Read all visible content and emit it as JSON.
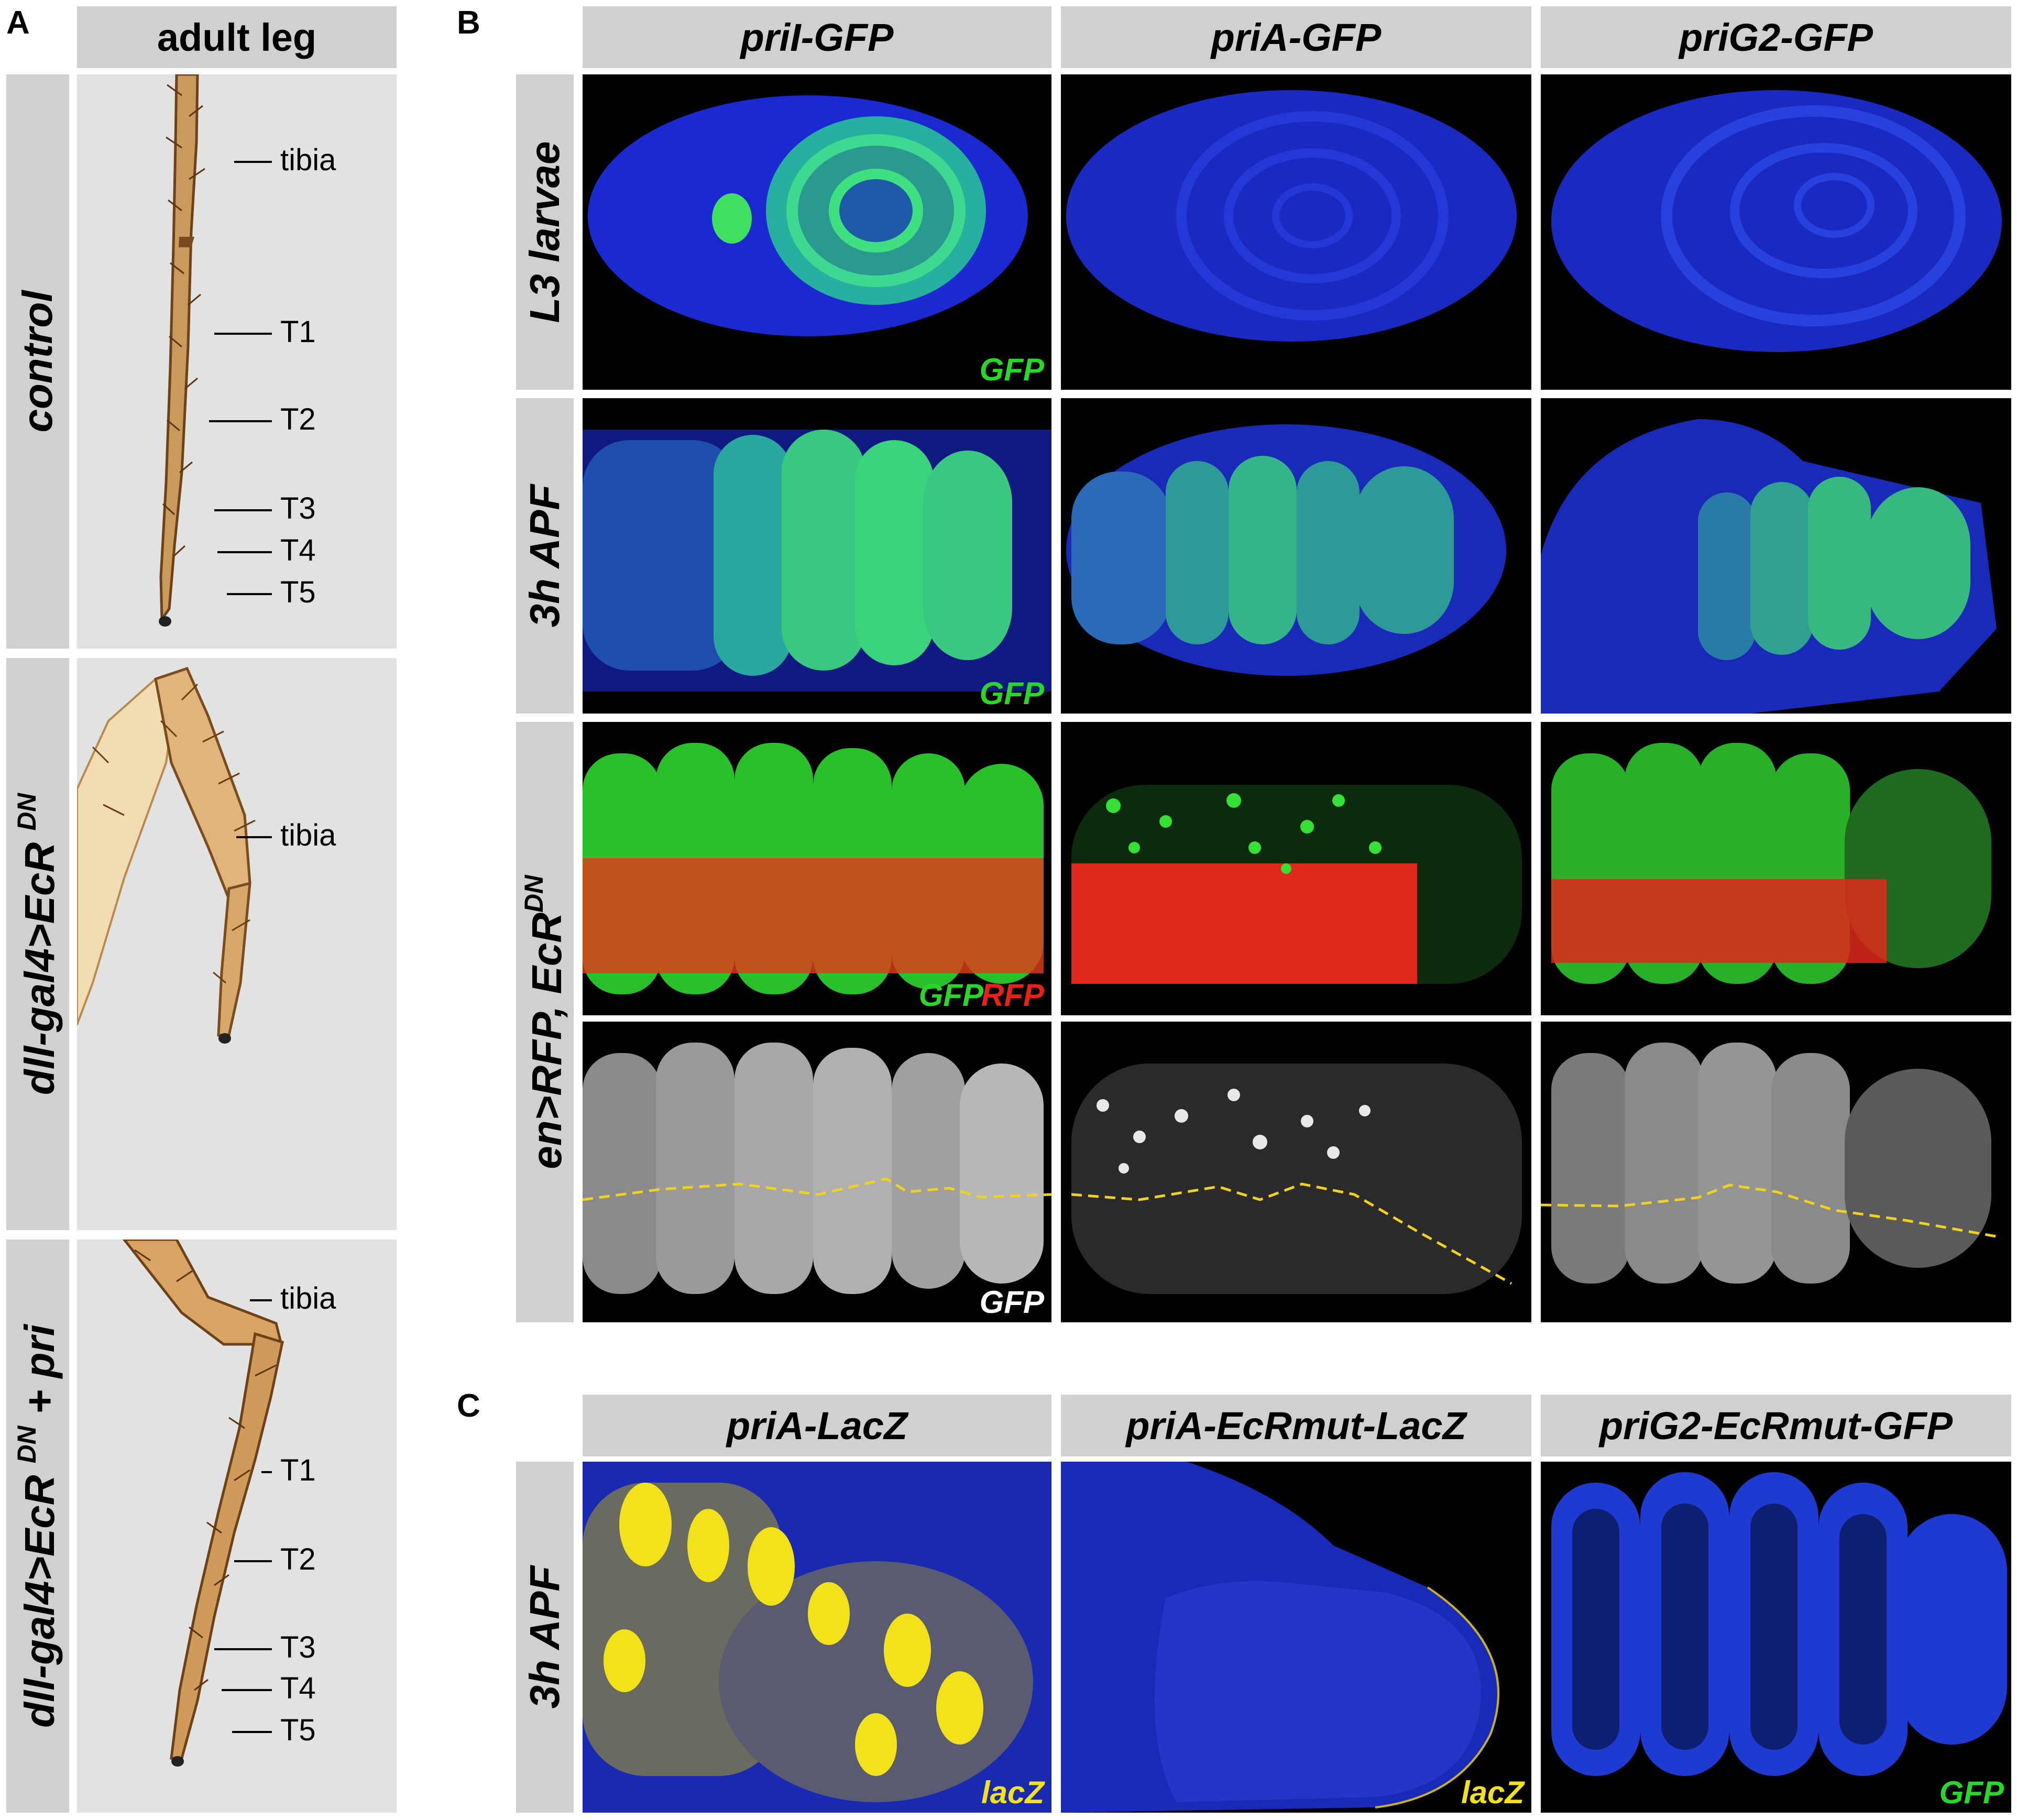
{
  "panel_letters": {
    "a": "A",
    "b": "B",
    "c": "C"
  },
  "panel_a": {
    "header": "adult leg",
    "rows": [
      {
        "label": "control",
        "label_sup": "",
        "label_suffix": "",
        "segments": [
          "tibia",
          "T1",
          "T2",
          "T3",
          "T4",
          "T5"
        ]
      },
      {
        "label": "dll-gal4>EcR ",
        "label_sup": "DN",
        "label_suffix": "",
        "segments": [
          "tibia"
        ]
      },
      {
        "label": "dll-gal4>EcR ",
        "label_sup": "DN",
        "label_suffix": " + pri",
        "segments": [
          "tibia",
          "T1",
          "T2",
          "T3",
          "T4",
          "T5"
        ]
      }
    ]
  },
  "panel_b": {
    "columns": [
      "priI-GFP",
      "priA-GFP",
      "priG2-GFP"
    ],
    "row_labels": {
      "l3": "L3 larvae",
      "apf": "3h APF",
      "en_prefix": "en>RFP, EcR",
      "en_sup": "DN"
    },
    "channels": {
      "gfp": "GFP",
      "rfp": "RFP",
      "gfp_gray": "GFP"
    }
  },
  "panel_c": {
    "columns": [
      "priA-LacZ",
      "priA-EcRmut-LacZ",
      "priG2-EcRmut-GFP"
    ],
    "row_label": "3h APF",
    "channels": [
      "lacZ",
      "lacZ",
      "GFP"
    ]
  },
  "colors": {
    "header_bg": "#d0d0d0",
    "gfp": "#28d828",
    "rfp": "#e8221a",
    "lacz": "#f2e21a",
    "dapi": "#1a2ad0",
    "dashed_line": "#f0d21e"
  }
}
